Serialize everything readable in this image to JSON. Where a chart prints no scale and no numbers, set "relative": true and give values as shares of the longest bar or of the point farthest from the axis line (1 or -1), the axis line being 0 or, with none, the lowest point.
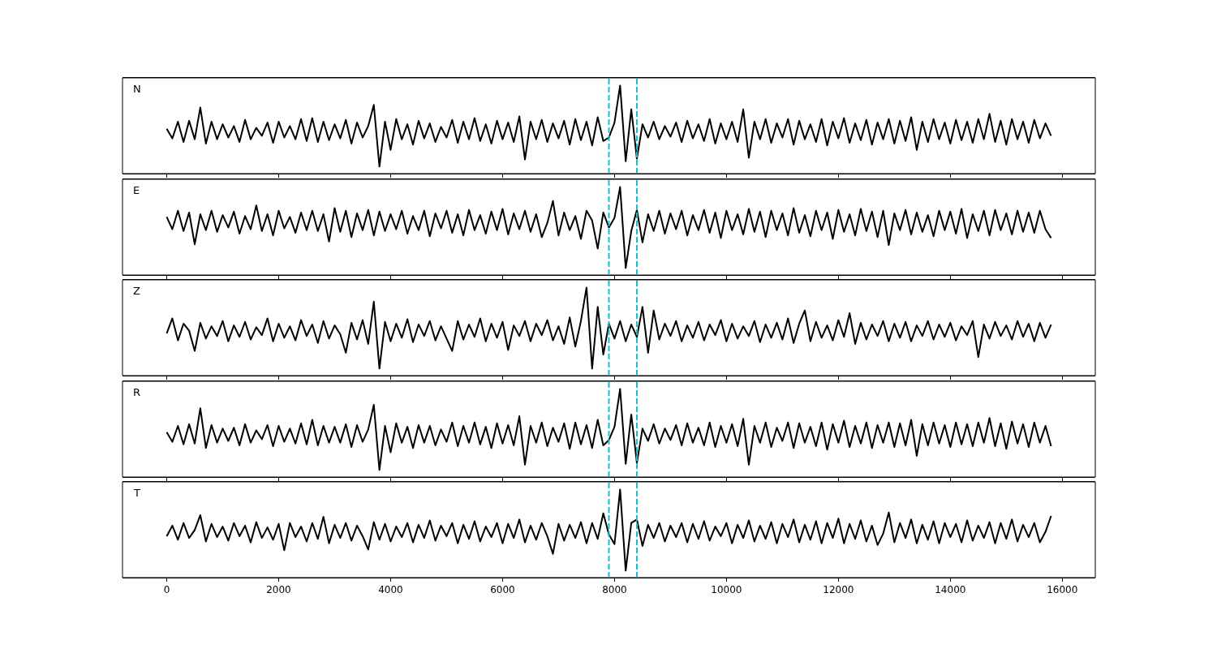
{
  "chart_data": [
    {
      "type": "line",
      "color": "#000000",
      "relative": true,
      "tick_labels": false,
      "annotations": [
        "N"
      ],
      "xlim": [
        -790,
        16590
      ],
      "xticks": [
        0,
        2000,
        4000,
        6000,
        8000,
        10000,
        12000,
        14000,
        16000
      ],
      "ref_lines": [
        {
          "axis": "x",
          "value": 7900,
          "color": "#17becf",
          "line_style": "dashed"
        },
        {
          "axis": "x",
          "value": 8400,
          "color": "#17becf",
          "line_style": "dashed"
        }
      ],
      "x": [
        0,
        100,
        200,
        300,
        400,
        500,
        600,
        700,
        800,
        900,
        1000,
        1100,
        1200,
        1300,
        1400,
        1500,
        1600,
        1700,
        1800,
        1900,
        2000,
        2100,
        2200,
        2300,
        2400,
        2500,
        2600,
        2700,
        2800,
        2900,
        3000,
        3100,
        3200,
        3300,
        3400,
        3500,
        3600,
        3700,
        3800,
        3900,
        4000,
        4100,
        4200,
        4300,
        4400,
        4500,
        4600,
        4700,
        4800,
        4900,
        5000,
        5100,
        5200,
        5300,
        5400,
        5500,
        5600,
        5700,
        5800,
        5900,
        6000,
        6100,
        6200,
        6300,
        6400,
        6500,
        6600,
        6700,
        6800,
        6900,
        7000,
        7100,
        7200,
        7300,
        7400,
        7500,
        7600,
        7700,
        7800,
        7900,
        8000,
        8100,
        8200,
        8300,
        8400,
        8500,
        8600,
        8700,
        8800,
        8900,
        9000,
        9100,
        9200,
        9300,
        9400,
        9500,
        9600,
        9700,
        9800,
        9900,
        10000,
        10100,
        10200,
        10300,
        10400,
        10500,
        10600,
        10700,
        10800,
        10900,
        11000,
        11100,
        11200,
        11300,
        11400,
        11500,
        11600,
        11700,
        11800,
        11900,
        12000,
        12100,
        12200,
        12300,
        12400,
        12500,
        12600,
        12700,
        12800,
        12900,
        13000,
        13100,
        13200,
        13300,
        13400,
        13500,
        13600,
        13700,
        13800,
        13900,
        14000,
        14100,
        14200,
        14300,
        14400,
        14500,
        14600,
        14700,
        14800,
        14900,
        15000,
        15100,
        15200,
        15300,
        15400,
        15500,
        15600,
        15700,
        15800
      ],
      "values": [
        0.51,
        0.4,
        0.59,
        0.36,
        0.6,
        0.39,
        0.75,
        0.34,
        0.59,
        0.39,
        0.56,
        0.41,
        0.54,
        0.36,
        0.61,
        0.39,
        0.52,
        0.43,
        0.58,
        0.35,
        0.59,
        0.41,
        0.54,
        0.39,
        0.62,
        0.37,
        0.63,
        0.36,
        0.59,
        0.38,
        0.56,
        0.4,
        0.61,
        0.34,
        0.58,
        0.41,
        0.54,
        0.78,
        0.08,
        0.59,
        0.27,
        0.62,
        0.39,
        0.56,
        0.33,
        0.6,
        0.4,
        0.57,
        0.36,
        0.53,
        0.41,
        0.61,
        0.35,
        0.59,
        0.39,
        0.63,
        0.37,
        0.56,
        0.34,
        0.6,
        0.39,
        0.58,
        0.36,
        0.65,
        0.16,
        0.59,
        0.39,
        0.61,
        0.36,
        0.57,
        0.4,
        0.6,
        0.33,
        0.62,
        0.38,
        0.59,
        0.32,
        0.64,
        0.37,
        0.41,
        0.58,
        1.0,
        0.14,
        0.73,
        0.17,
        0.56,
        0.41,
        0.59,
        0.39,
        0.54,
        0.42,
        0.58,
        0.36,
        0.6,
        0.4,
        0.56,
        0.37,
        0.62,
        0.34,
        0.57,
        0.39,
        0.59,
        0.36,
        0.73,
        0.18,
        0.59,
        0.39,
        0.62,
        0.35,
        0.57,
        0.41,
        0.62,
        0.33,
        0.6,
        0.39,
        0.56,
        0.36,
        0.62,
        0.32,
        0.59,
        0.4,
        0.63,
        0.35,
        0.57,
        0.38,
        0.61,
        0.33,
        0.58,
        0.39,
        0.62,
        0.34,
        0.6,
        0.37,
        0.64,
        0.27,
        0.59,
        0.36,
        0.62,
        0.39,
        0.58,
        0.34,
        0.61,
        0.38,
        0.59,
        0.35,
        0.62,
        0.39,
        0.68,
        0.36,
        0.6,
        0.33,
        0.62,
        0.39,
        0.59,
        0.35,
        0.61,
        0.4,
        0.57,
        0.43
      ]
    },
    {
      "type": "line",
      "color": "#000000",
      "relative": true,
      "tick_labels": false,
      "annotations": [
        "E"
      ],
      "xlim": [
        -790,
        16590
      ],
      "xticks": [
        0,
        2000,
        4000,
        6000,
        8000,
        10000,
        12000,
        14000,
        16000
      ],
      "ref_lines": [
        {
          "axis": "x",
          "value": 7900,
          "color": "#17becf",
          "line_style": "dashed"
        },
        {
          "axis": "x",
          "value": 8400,
          "color": "#17becf",
          "line_style": "dashed"
        }
      ],
      "x": [
        0,
        100,
        200,
        300,
        400,
        500,
        600,
        700,
        800,
        900,
        1000,
        1100,
        1200,
        1300,
        1400,
        1500,
        1600,
        1700,
        1800,
        1900,
        2000,
        2100,
        2200,
        2300,
        2400,
        2500,
        2600,
        2700,
        2800,
        2900,
        3000,
        3100,
        3200,
        3300,
        3400,
        3500,
        3600,
        3700,
        3800,
        3900,
        4000,
        4100,
        4200,
        4300,
        4400,
        4500,
        4600,
        4700,
        4800,
        4900,
        5000,
        5100,
        5200,
        5300,
        5400,
        5500,
        5600,
        5700,
        5800,
        5900,
        6000,
        6100,
        6200,
        6300,
        6400,
        6500,
        6600,
        6700,
        6800,
        6900,
        7000,
        7100,
        7200,
        7300,
        7400,
        7500,
        7600,
        7700,
        7800,
        7900,
        8000,
        8100,
        8200,
        8300,
        8400,
        8500,
        8600,
        8700,
        8800,
        8900,
        9000,
        9100,
        9200,
        9300,
        9400,
        9500,
        9600,
        9700,
        9800,
        9900,
        10000,
        10100,
        10200,
        10300,
        10400,
        10500,
        10600,
        10700,
        10800,
        10900,
        11000,
        11100,
        11200,
        11300,
        11400,
        11500,
        11600,
        11700,
        11800,
        11900,
        12000,
        12100,
        12200,
        12300,
        12400,
        12500,
        12600,
        12700,
        12800,
        12900,
        13000,
        13100,
        13200,
        13300,
        13400,
        13500,
        13600,
        13700,
        13800,
        13900,
        14000,
        14100,
        14200,
        14300,
        14400,
        14500,
        14600,
        14700,
        14800,
        14900,
        15000,
        15100,
        15200,
        15300,
        15400,
        15500,
        15600,
        15700,
        15800
      ],
      "values": [
        0.66,
        0.52,
        0.73,
        0.5,
        0.71,
        0.35,
        0.69,
        0.51,
        0.73,
        0.49,
        0.68,
        0.54,
        0.72,
        0.47,
        0.67,
        0.52,
        0.79,
        0.5,
        0.69,
        0.45,
        0.73,
        0.53,
        0.66,
        0.48,
        0.71,
        0.51,
        0.73,
        0.5,
        0.69,
        0.38,
        0.76,
        0.49,
        0.73,
        0.43,
        0.7,
        0.51,
        0.74,
        0.45,
        0.72,
        0.5,
        0.69,
        0.52,
        0.73,
        0.47,
        0.67,
        0.51,
        0.73,
        0.44,
        0.7,
        0.53,
        0.73,
        0.48,
        0.69,
        0.45,
        0.74,
        0.51,
        0.68,
        0.47,
        0.72,
        0.51,
        0.75,
        0.46,
        0.7,
        0.52,
        0.73,
        0.49,
        0.69,
        0.43,
        0.59,
        0.84,
        0.45,
        0.71,
        0.51,
        0.67,
        0.41,
        0.73,
        0.62,
        0.3,
        0.71,
        0.54,
        0.65,
        1.0,
        0.08,
        0.5,
        0.74,
        0.37,
        0.69,
        0.5,
        0.73,
        0.47,
        0.7,
        0.52,
        0.73,
        0.45,
        0.68,
        0.51,
        0.74,
        0.48,
        0.71,
        0.42,
        0.73,
        0.51,
        0.69,
        0.46,
        0.75,
        0.49,
        0.72,
        0.43,
        0.73,
        0.51,
        0.7,
        0.45,
        0.76,
        0.48,
        0.68,
        0.44,
        0.73,
        0.51,
        0.71,
        0.41,
        0.74,
        0.49,
        0.69,
        0.45,
        0.75,
        0.5,
        0.72,
        0.43,
        0.73,
        0.34,
        0.7,
        0.51,
        0.74,
        0.46,
        0.71,
        0.49,
        0.68,
        0.44,
        0.73,
        0.51,
        0.72,
        0.47,
        0.75,
        0.42,
        0.69,
        0.5,
        0.73,
        0.45,
        0.74,
        0.51,
        0.7,
        0.46,
        0.73,
        0.49,
        0.71,
        0.48,
        0.73,
        0.52,
        0.42
      ]
    },
    {
      "type": "line",
      "color": "#000000",
      "relative": true,
      "tick_labels": false,
      "annotations": [
        "Z"
      ],
      "xlim": [
        -790,
        16590
      ],
      "xticks": [
        0,
        2000,
        4000,
        6000,
        8000,
        10000,
        12000,
        14000,
        16000
      ],
      "ref_lines": [
        {
          "axis": "x",
          "value": 7900,
          "color": "#17becf",
          "line_style": "dashed"
        },
        {
          "axis": "x",
          "value": 8400,
          "color": "#17becf",
          "line_style": "dashed"
        }
      ],
      "x": [
        0,
        100,
        200,
        300,
        400,
        500,
        600,
        700,
        800,
        900,
        1000,
        1100,
        1200,
        1300,
        1400,
        1500,
        1600,
        1700,
        1800,
        1900,
        2000,
        2100,
        2200,
        2300,
        2400,
        2500,
        2600,
        2700,
        2800,
        2900,
        3000,
        3100,
        3200,
        3300,
        3400,
        3500,
        3600,
        3700,
        3800,
        3900,
        4000,
        4100,
        4200,
        4300,
        4400,
        4500,
        4600,
        4700,
        4800,
        4900,
        5000,
        5100,
        5200,
        5300,
        5400,
        5500,
        5600,
        5700,
        5800,
        5900,
        6000,
        6100,
        6200,
        6300,
        6400,
        6500,
        6600,
        6700,
        6800,
        6900,
        7000,
        7100,
        7200,
        7300,
        7400,
        7500,
        7600,
        7700,
        7800,
        7900,
        8000,
        8100,
        8200,
        8300,
        8400,
        8500,
        8600,
        8700,
        8800,
        8900,
        9000,
        9100,
        9200,
        9300,
        9400,
        9500,
        9600,
        9700,
        9800,
        9900,
        10000,
        10100,
        10200,
        10300,
        10400,
        10500,
        10600,
        10700,
        10800,
        10900,
        11000,
        11100,
        11200,
        11300,
        11400,
        11500,
        11600,
        11700,
        11800,
        11900,
        12000,
        12100,
        12200,
        12300,
        12400,
        12500,
        12600,
        12700,
        12800,
        12900,
        13000,
        13100,
        13200,
        13300,
        13400,
        13500,
        13600,
        13700,
        13800,
        13900,
        14000,
        14100,
        14200,
        14300,
        14400,
        14500,
        14600,
        14700,
        14800,
        14900,
        15000,
        15100,
        15200,
        15300,
        15400,
        15500,
        15600,
        15700,
        15800
      ],
      "values": [
        0.48,
        0.65,
        0.4,
        0.59,
        0.51,
        0.28,
        0.6,
        0.42,
        0.56,
        0.45,
        0.62,
        0.39,
        0.57,
        0.44,
        0.61,
        0.41,
        0.55,
        0.46,
        0.65,
        0.39,
        0.59,
        0.43,
        0.56,
        0.4,
        0.63,
        0.45,
        0.58,
        0.37,
        0.62,
        0.42,
        0.57,
        0.47,
        0.26,
        0.6,
        0.41,
        0.63,
        0.36,
        0.84,
        0.08,
        0.61,
        0.39,
        0.59,
        0.43,
        0.64,
        0.38,
        0.58,
        0.45,
        0.62,
        0.4,
        0.56,
        0.42,
        0.28,
        0.62,
        0.41,
        0.58,
        0.44,
        0.65,
        0.39,
        0.59,
        0.43,
        0.61,
        0.29,
        0.57,
        0.45,
        0.62,
        0.39,
        0.59,
        0.46,
        0.63,
        0.4,
        0.56,
        0.36,
        0.66,
        0.33,
        0.62,
        1.0,
        0.08,
        0.78,
        0.24,
        0.59,
        0.42,
        0.62,
        0.39,
        0.58,
        0.44,
        0.78,
        0.26,
        0.74,
        0.41,
        0.59,
        0.45,
        0.62,
        0.39,
        0.57,
        0.43,
        0.61,
        0.4,
        0.58,
        0.46,
        0.63,
        0.39,
        0.59,
        0.42,
        0.56,
        0.45,
        0.62,
        0.38,
        0.58,
        0.43,
        0.6,
        0.41,
        0.65,
        0.37,
        0.59,
        0.74,
        0.39,
        0.61,
        0.43,
        0.57,
        0.4,
        0.63,
        0.44,
        0.71,
        0.36,
        0.6,
        0.41,
        0.58,
        0.45,
        0.62,
        0.39,
        0.59,
        0.43,
        0.61,
        0.39,
        0.57,
        0.45,
        0.62,
        0.41,
        0.58,
        0.44,
        0.6,
        0.4,
        0.56,
        0.46,
        0.62,
        0.21,
        0.58,
        0.42,
        0.61,
        0.45,
        0.57,
        0.41,
        0.62,
        0.44,
        0.59,
        0.39,
        0.6,
        0.43,
        0.58
      ]
    },
    {
      "type": "line",
      "color": "#000000",
      "relative": true,
      "tick_labels": false,
      "annotations": [
        "R"
      ],
      "xlim": [
        -790,
        16590
      ],
      "xticks": [
        0,
        2000,
        4000,
        6000,
        8000,
        10000,
        12000,
        14000,
        16000
      ],
      "ref_lines": [
        {
          "axis": "x",
          "value": 7900,
          "color": "#17becf",
          "line_style": "dashed"
        },
        {
          "axis": "x",
          "value": 8400,
          "color": "#17becf",
          "line_style": "dashed"
        }
      ],
      "x": [
        0,
        100,
        200,
        300,
        400,
        500,
        600,
        700,
        800,
        900,
        1000,
        1100,
        1200,
        1300,
        1400,
        1500,
        1600,
        1700,
        1800,
        1900,
        2000,
        2100,
        2200,
        2300,
        2400,
        2500,
        2600,
        2700,
        2800,
        2900,
        3000,
        3100,
        3200,
        3300,
        3400,
        3500,
        3600,
        3700,
        3800,
        3900,
        4000,
        4100,
        4200,
        4300,
        4400,
        4500,
        4600,
        4700,
        4800,
        4900,
        5000,
        5100,
        5200,
        5300,
        5400,
        5500,
        5600,
        5700,
        5800,
        5900,
        6000,
        6100,
        6200,
        6300,
        6400,
        6500,
        6600,
        6700,
        6800,
        6900,
        7000,
        7100,
        7200,
        7300,
        7400,
        7500,
        7600,
        7700,
        7800,
        7900,
        8000,
        8100,
        8200,
        8300,
        8400,
        8500,
        8600,
        8700,
        8800,
        8900,
        9000,
        9100,
        9200,
        9300,
        9400,
        9500,
        9600,
        9700,
        9800,
        9900,
        10000,
        10100,
        10200,
        10300,
        10400,
        10500,
        10600,
        10700,
        10800,
        10900,
        11000,
        11100,
        11200,
        11300,
        11400,
        11500,
        11600,
        11700,
        11800,
        11900,
        12000,
        12100,
        12200,
        12300,
        12400,
        12500,
        12600,
        12700,
        12800,
        12900,
        13000,
        13100,
        13200,
        13300,
        13400,
        13500,
        13600,
        13700,
        13800,
        13900,
        14000,
        14100,
        14200,
        14300,
        14400,
        14500,
        14600,
        14700,
        14800,
        14900,
        15000,
        15100,
        15200,
        15300,
        15400,
        15500,
        15600,
        15700,
        15800
      ],
      "values": [
        0.51,
        0.4,
        0.58,
        0.37,
        0.6,
        0.38,
        0.78,
        0.33,
        0.59,
        0.39,
        0.55,
        0.41,
        0.56,
        0.36,
        0.6,
        0.39,
        0.53,
        0.43,
        0.59,
        0.35,
        0.58,
        0.4,
        0.55,
        0.38,
        0.61,
        0.37,
        0.65,
        0.36,
        0.58,
        0.39,
        0.57,
        0.39,
        0.6,
        0.34,
        0.59,
        0.4,
        0.54,
        0.82,
        0.08,
        0.58,
        0.28,
        0.61,
        0.39,
        0.57,
        0.33,
        0.59,
        0.39,
        0.58,
        0.36,
        0.54,
        0.4,
        0.62,
        0.35,
        0.58,
        0.39,
        0.62,
        0.37,
        0.57,
        0.33,
        0.61,
        0.38,
        0.59,
        0.36,
        0.69,
        0.14,
        0.58,
        0.39,
        0.62,
        0.35,
        0.56,
        0.4,
        0.61,
        0.32,
        0.62,
        0.37,
        0.59,
        0.33,
        0.65,
        0.36,
        0.42,
        0.57,
        1.0,
        0.15,
        0.71,
        0.16,
        0.55,
        0.41,
        0.6,
        0.38,
        0.55,
        0.42,
        0.59,
        0.36,
        0.61,
        0.39,
        0.56,
        0.36,
        0.62,
        0.34,
        0.58,
        0.39,
        0.6,
        0.35,
        0.66,
        0.14,
        0.58,
        0.39,
        0.62,
        0.34,
        0.56,
        0.41,
        0.62,
        0.33,
        0.61,
        0.39,
        0.57,
        0.35,
        0.62,
        0.31,
        0.6,
        0.39,
        0.64,
        0.34,
        0.58,
        0.38,
        0.62,
        0.33,
        0.59,
        0.39,
        0.62,
        0.34,
        0.61,
        0.36,
        0.65,
        0.24,
        0.6,
        0.36,
        0.62,
        0.38,
        0.59,
        0.34,
        0.62,
        0.37,
        0.6,
        0.35,
        0.62,
        0.39,
        0.67,
        0.35,
        0.61,
        0.32,
        0.63,
        0.38,
        0.6,
        0.34,
        0.62,
        0.39,
        0.58,
        0.35
      ]
    },
    {
      "type": "line",
      "color": "#000000",
      "relative": true,
      "tick_labels": "x",
      "annotations": [
        "T"
      ],
      "xlim": [
        -790,
        16590
      ],
      "xticks": [
        0,
        2000,
        4000,
        6000,
        8000,
        10000,
        12000,
        14000,
        16000
      ],
      "ref_lines": [
        {
          "axis": "x",
          "value": 7900,
          "color": "#17becf",
          "line_style": "dashed"
        },
        {
          "axis": "x",
          "value": 8400,
          "color": "#17becf",
          "line_style": "dashed"
        }
      ],
      "x": [
        0,
        100,
        200,
        300,
        400,
        500,
        600,
        700,
        800,
        900,
        1000,
        1100,
        1200,
        1300,
        1400,
        1500,
        1600,
        1700,
        1800,
        1900,
        2000,
        2100,
        2200,
        2300,
        2400,
        2500,
        2600,
        2700,
        2800,
        2900,
        3000,
        3100,
        3200,
        3300,
        3400,
        3500,
        3600,
        3700,
        3800,
        3900,
        4000,
        4100,
        4200,
        4300,
        4400,
        4500,
        4600,
        4700,
        4800,
        4900,
        5000,
        5100,
        5200,
        5300,
        5400,
        5500,
        5600,
        5700,
        5800,
        5900,
        6000,
        6100,
        6200,
        6300,
        6400,
        6500,
        6600,
        6700,
        6800,
        6900,
        7000,
        7100,
        7200,
        7300,
        7400,
        7500,
        7600,
        7700,
        7800,
        7900,
        8000,
        8100,
        8200,
        8300,
        8400,
        8500,
        8600,
        8700,
        8800,
        8900,
        9000,
        9100,
        9200,
        9300,
        9400,
        9500,
        9600,
        9700,
        9800,
        9900,
        10000,
        10100,
        10200,
        10300,
        10400,
        10500,
        10600,
        10700,
        10800,
        10900,
        11000,
        11100,
        11200,
        11300,
        11400,
        11500,
        11600,
        11700,
        11800,
        11900,
        12000,
        12100,
        12200,
        12300,
        12400,
        12500,
        12600,
        12700,
        12800,
        12900,
        13000,
        13100,
        13200,
        13300,
        13400,
        13500,
        13600,
        13700,
        13800,
        13900,
        14000,
        14100,
        14200,
        14300,
        14400,
        14500,
        14600,
        14700,
        14800,
        14900,
        15000,
        15100,
        15200,
        15300,
        15400,
        15500,
        15600,
        15700,
        15800
      ],
      "values": [
        0.47,
        0.59,
        0.43,
        0.62,
        0.45,
        0.54,
        0.71,
        0.41,
        0.61,
        0.46,
        0.58,
        0.42,
        0.62,
        0.47,
        0.59,
        0.4,
        0.63,
        0.45,
        0.57,
        0.43,
        0.61,
        0.31,
        0.62,
        0.46,
        0.58,
        0.41,
        0.62,
        0.44,
        0.69,
        0.39,
        0.6,
        0.45,
        0.62,
        0.42,
        0.59,
        0.47,
        0.32,
        0.63,
        0.43,
        0.61,
        0.41,
        0.58,
        0.46,
        0.62,
        0.4,
        0.6,
        0.45,
        0.65,
        0.42,
        0.59,
        0.47,
        0.62,
        0.39,
        0.6,
        0.44,
        0.64,
        0.41,
        0.58,
        0.46,
        0.62,
        0.39,
        0.61,
        0.45,
        0.66,
        0.4,
        0.59,
        0.43,
        0.62,
        0.47,
        0.27,
        0.61,
        0.42,
        0.6,
        0.45,
        0.63,
        0.39,
        0.62,
        0.44,
        0.73,
        0.49,
        0.38,
        1.0,
        0.08,
        0.62,
        0.66,
        0.36,
        0.6,
        0.45,
        0.62,
        0.41,
        0.59,
        0.46,
        0.62,
        0.4,
        0.61,
        0.44,
        0.64,
        0.42,
        0.58,
        0.47,
        0.62,
        0.39,
        0.6,
        0.45,
        0.65,
        0.41,
        0.59,
        0.44,
        0.63,
        0.39,
        0.61,
        0.46,
        0.66,
        0.4,
        0.6,
        0.43,
        0.64,
        0.39,
        0.62,
        0.45,
        0.67,
        0.39,
        0.61,
        0.44,
        0.65,
        0.41,
        0.59,
        0.37,
        0.5,
        0.74,
        0.4,
        0.62,
        0.45,
        0.66,
        0.39,
        0.6,
        0.43,
        0.64,
        0.39,
        0.62,
        0.46,
        0.61,
        0.4,
        0.65,
        0.42,
        0.59,
        0.45,
        0.63,
        0.39,
        0.62,
        0.44,
        0.66,
        0.41,
        0.6,
        0.46,
        0.62,
        0.4,
        0.52,
        0.7
      ]
    }
  ]
}
